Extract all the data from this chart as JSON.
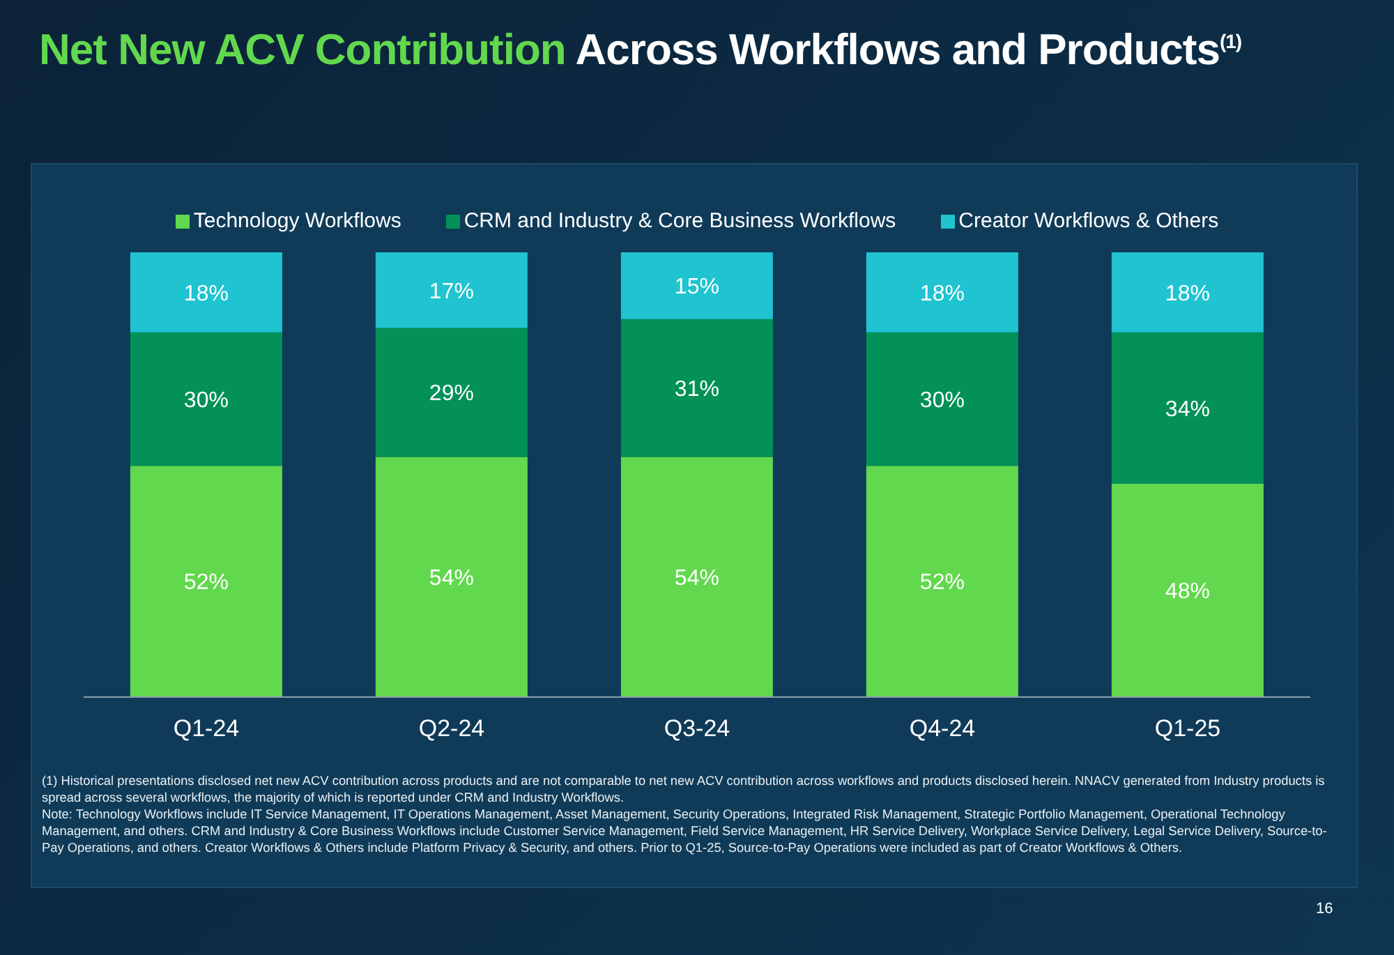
{
  "chart_data": {
    "type": "bar",
    "title": "Net New ACV Contribution Across Workflows and Products$^{(1)}$",
    "categories": [
      "Q1-24",
      "Q2-24",
      "Q3-24",
      "Q4-24",
      "Q1-25"
    ],
    "stacked": true,
    "legend": "top",
    "grid": false,
    "series": [
      {
        "name": "Technology Workflows",
        "color": "#62d84e",
        "values": [
          52,
          54,
          54,
          52,
          48
        ],
        "value_labels": [
          "52%",
          "54%",
          "54%",
          "52%",
          "48%"
        ]
      },
      {
        "name": "CRM and Industry & Core Business Workflows",
        "color": "#039157",
        "values": [
          30,
          29,
          31,
          30,
          34
        ],
        "value_labels": [
          "30%",
          "29%",
          "31%",
          "30%",
          "34%"
        ]
      },
      {
        "name": "Creator Workflows & Others",
        "color": "#20c3d0",
        "values": [
          18,
          17,
          15,
          18,
          18
        ],
        "value_labels": [
          "18%",
          "17%",
          "15%",
          "18%",
          "18%"
        ]
      }
    ],
    "annotations": [
      "(1) Historical presentations disclosed net new ACV contribution across products and are not comparable to net new ACV contribution across workflows and products disclosed herein. NNACV generated from Industry products is spread across several workflows, the majority of which is reported under CRM and Industry Workflows.",
      "Note: Technology Workflows include IT Service Management, IT Operations Management, Asset Management, Security Operations, Integrated Risk Management, Strategic Portfolio Management, Operational Technology Management, and others. CRM and Industry & Core Business Workflows include Customer Service Management, Field Service Management, HR Service Delivery, Workplace Service Delivery, Legal Service Delivery, Source-to-Pay Operations, and others. Creator Workflows & Others include Platform Privacy & Security, and others. Prior to Q1-25, Source-to-Pay Operations were included as part of Creator Workflows & Others.",
      "16"
    ]
  }
}
